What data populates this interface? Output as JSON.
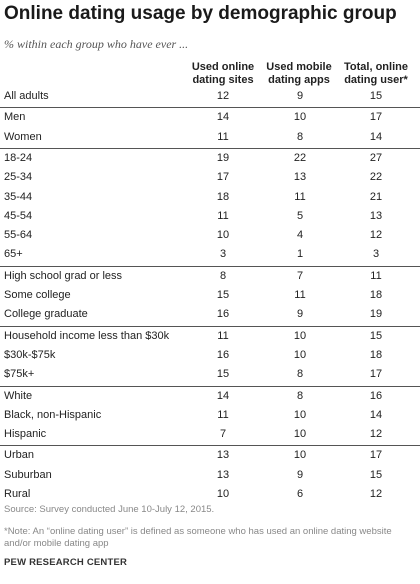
{
  "chart_data": {
    "type": "table",
    "title": "Online dating usage by demographic group",
    "subtitle": "% within each group who have ever ...",
    "columns": [
      "Used online dating sites",
      "Used mobile dating apps",
      "Total, online dating user*"
    ],
    "groups": [
      {
        "rows": [
          {
            "label": "All adults",
            "values": [
              12,
              9,
              15
            ]
          }
        ]
      },
      {
        "rows": [
          {
            "label": "Men",
            "values": [
              14,
              10,
              17
            ]
          },
          {
            "label": "Women",
            "values": [
              11,
              8,
              14
            ]
          }
        ]
      },
      {
        "rows": [
          {
            "label": "18-24",
            "values": [
              19,
              22,
              27
            ]
          },
          {
            "label": "25-34",
            "values": [
              17,
              13,
              22
            ]
          },
          {
            "label": "35-44",
            "values": [
              18,
              11,
              21
            ]
          },
          {
            "label": "45-54",
            "values": [
              11,
              5,
              13
            ]
          },
          {
            "label": "55-64",
            "values": [
              10,
              4,
              12
            ]
          },
          {
            "label": "65+",
            "values": [
              3,
              1,
              3
            ]
          }
        ]
      },
      {
        "rows": [
          {
            "label": "High school grad or less",
            "values": [
              8,
              7,
              11
            ]
          },
          {
            "label": "Some college",
            "values": [
              15,
              11,
              18
            ]
          },
          {
            "label": "College graduate",
            "values": [
              16,
              9,
              19
            ]
          }
        ]
      },
      {
        "rows": [
          {
            "label": "Household income less than $30k",
            "values": [
              11,
              10,
              15
            ]
          },
          {
            "label": "$30k-$75k",
            "values": [
              16,
              10,
              18
            ]
          },
          {
            "label": "$75k+",
            "values": [
              15,
              8,
              17
            ]
          }
        ]
      },
      {
        "rows": [
          {
            "label": "White",
            "values": [
              14,
              8,
              16
            ]
          },
          {
            "label": "Black, non-Hispanic",
            "values": [
              11,
              10,
              14
            ]
          },
          {
            "label": "Hispanic",
            "values": [
              7,
              10,
              12
            ]
          }
        ]
      },
      {
        "rows": [
          {
            "label": "Urban",
            "values": [
              13,
              10,
              17
            ]
          },
          {
            "label": "Suburban",
            "values": [
              13,
              9,
              15
            ]
          },
          {
            "label": "Rural",
            "values": [
              10,
              6,
              12
            ]
          }
        ]
      }
    ]
  },
  "footer": {
    "source": "Source: Survey conducted June 10-July 12, 2015.",
    "note": "*Note: An “online dating user” is defined as someone who has used an online dating website and/or mobile dating app",
    "credit": "PEW RESEARCH CENTER"
  }
}
